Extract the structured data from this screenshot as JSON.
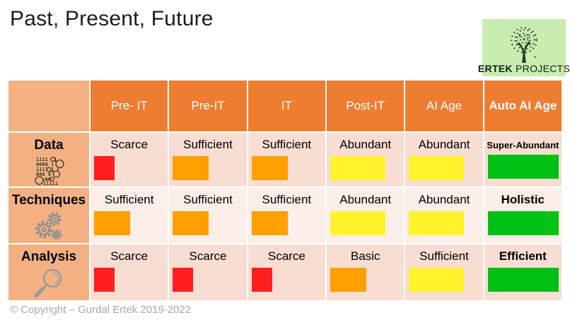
{
  "title": "Past, Present, Future",
  "logo": {
    "brand_bold": "ERTEK",
    "brand_regular": "PROJECTS",
    "bg": "#c7eeb0"
  },
  "footer": "© Copyright – Gurdal Ertek 2019-2022",
  "colors": {
    "header_bg": "#ED7D31",
    "row_header_bg": "#F3B183",
    "band_dark": "#F8DDD2",
    "band_light": "#FCEEE8",
    "bar_red": "#FF1F1F",
    "bar_orange": "#FFA000",
    "bar_yellow": "#FFF32B",
    "bar_green": "#00C013"
  },
  "bar_widths": {
    "red": 29,
    "orange": 51,
    "yellow": 78,
    "green": 100
  },
  "table": {
    "columns": [
      "",
      "Pre- IT",
      "Pre-IT",
      "IT",
      "Post-IT",
      "AI Age",
      "Auto AI Age"
    ],
    "rows": [
      {
        "label": "Data",
        "icon": "binary-data-icon",
        "band": "dark",
        "cells": [
          {
            "text": "Scarce",
            "level": "red"
          },
          {
            "text": "Sufficient",
            "level": "orange"
          },
          {
            "text": "Sufficient",
            "level": "orange"
          },
          {
            "text": "Abundant",
            "level": "yellow"
          },
          {
            "text": "Abundant",
            "level": "yellow"
          },
          {
            "text": "Super-Abundant",
            "level": "green",
            "bold": true,
            "small": true
          }
        ]
      },
      {
        "label": "Techniques",
        "icon": "gears-icon",
        "band": "light",
        "cells": [
          {
            "text": "Sufficient",
            "level": "orange"
          },
          {
            "text": "Sufficient",
            "level": "orange"
          },
          {
            "text": "Sufficient",
            "level": "orange"
          },
          {
            "text": "Abundant",
            "level": "yellow"
          },
          {
            "text": "Abundant",
            "level": "yellow"
          },
          {
            "text": "Holistic",
            "level": "green",
            "bold": true
          }
        ]
      },
      {
        "label": "Analysis",
        "icon": "magnifier-icon",
        "band": "dark",
        "cells": [
          {
            "text": "Scarce",
            "level": "red"
          },
          {
            "text": "Scarce",
            "level": "red"
          },
          {
            "text": "Scarce",
            "level": "red"
          },
          {
            "text": "Basic",
            "level": "orange"
          },
          {
            "text": "Sufficient",
            "level": "yellow"
          },
          {
            "text": "Efficient",
            "level": "green",
            "bold": true
          }
        ]
      }
    ]
  }
}
